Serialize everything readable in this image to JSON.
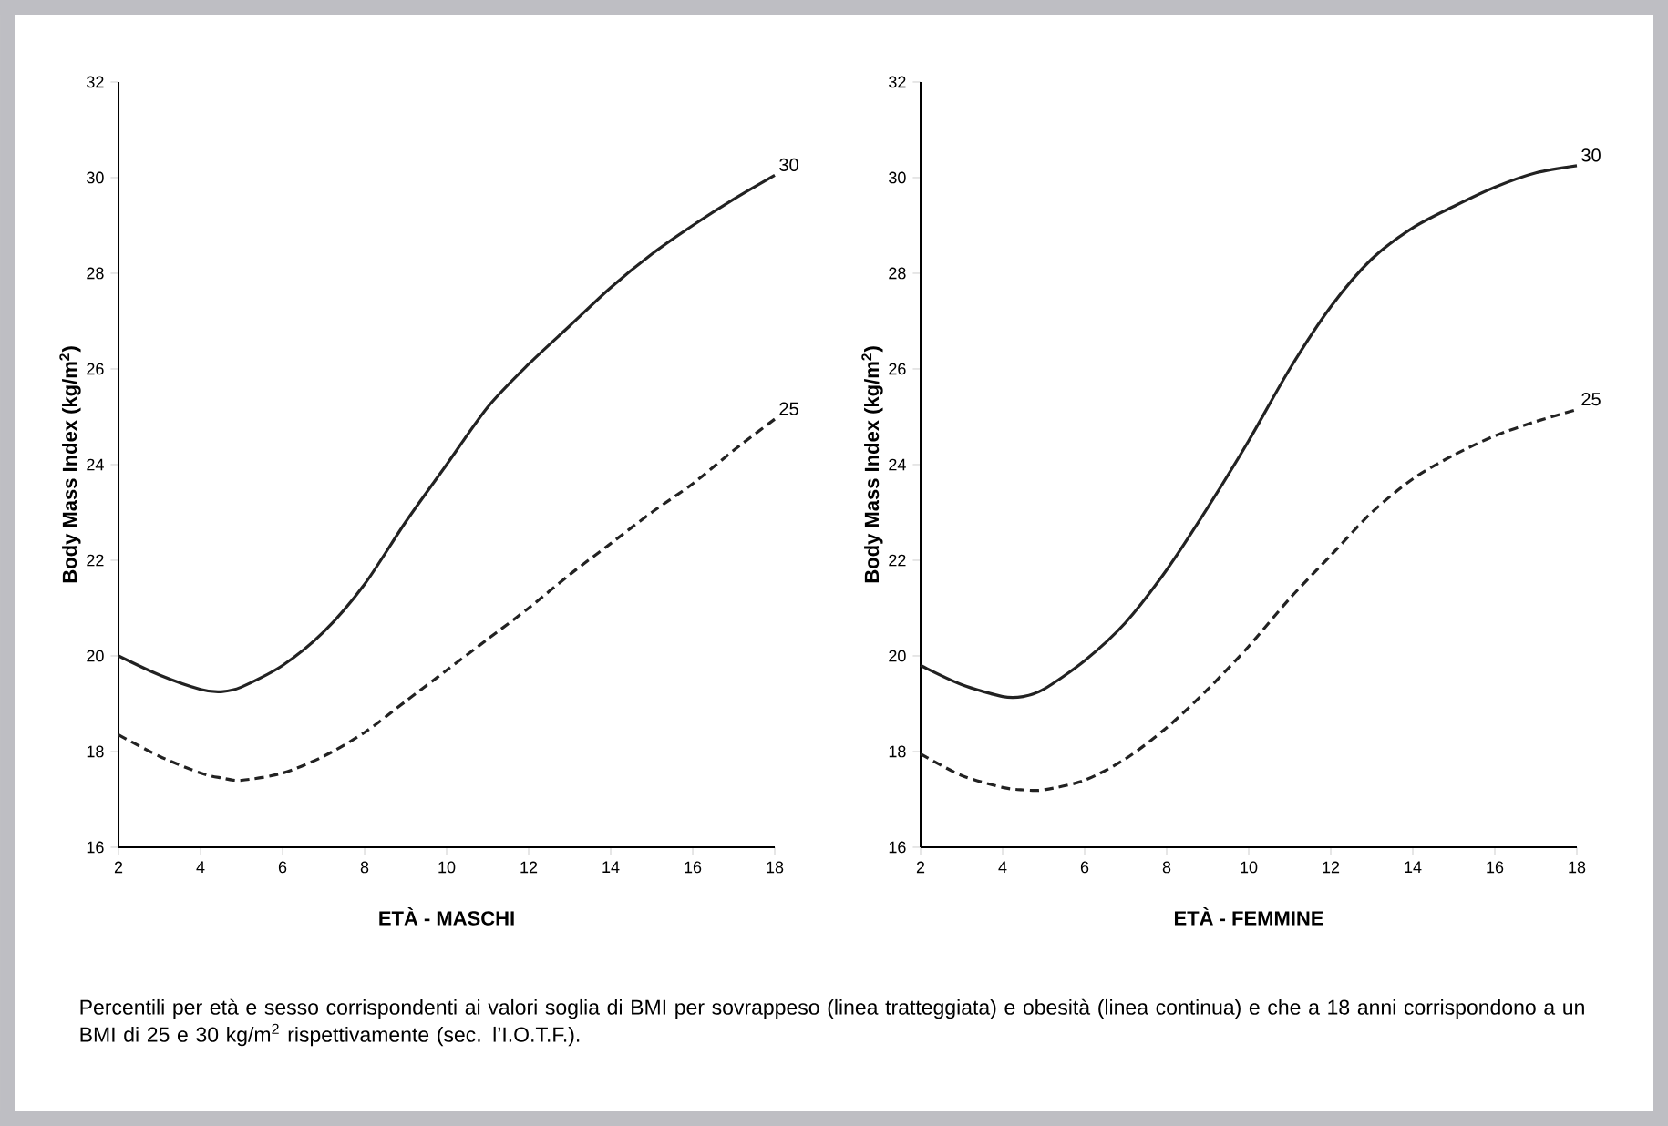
{
  "chart_data": [
    {
      "type": "line",
      "xlabel": "ETÀ - MASCHI",
      "ylabel": "Body Mass Index (kg/m$^{2}$)",
      "xlim": [
        2,
        18
      ],
      "ylim": [
        16,
        32
      ],
      "xticks": [
        2,
        4,
        6,
        8,
        10,
        12,
        14,
        16,
        18
      ],
      "yticks": [
        16,
        18,
        20,
        22,
        24,
        26,
        28,
        30,
        32
      ],
      "grid": false,
      "legend": false,
      "marker": "none",
      "x": [
        2,
        3,
        4,
        4.5,
        5,
        6,
        7,
        8,
        9,
        10,
        11,
        12,
        13,
        14,
        15,
        16,
        17,
        18
      ],
      "series": [
        {
          "name": "30",
          "color": "#222222",
          "line_style": "solid",
          "values": [
            20.0,
            19.6,
            19.3,
            19.25,
            19.35,
            19.8,
            20.5,
            21.5,
            22.8,
            24.0,
            25.2,
            26.1,
            26.9,
            27.7,
            28.4,
            29.0,
            29.55,
            30.05
          ]
        },
        {
          "name": "25",
          "color": "#222222",
          "line_style": "dashed",
          "values": [
            18.35,
            17.9,
            17.55,
            17.45,
            17.4,
            17.55,
            17.9,
            18.4,
            19.05,
            19.7,
            20.35,
            21.0,
            21.7,
            22.35,
            23.0,
            23.6,
            24.3,
            24.95
          ]
        }
      ],
      "annotations": [
        "Percentili per età e sesso corrispondenti ai valori soglia di BMI per sovrappeso (linea tratteggiata) e obesità (linea continua) e che a 18 anni corrispondono a un BMI di 25 e 30 kg/m$^{2}$ rispettivamente (sec. l’I.O.T.F.)."
      ]
    },
    {
      "type": "line",
      "xlabel": "ETÀ - FEMMINE",
      "ylabel": "Body Mass Index (kg/m$^{2}$)",
      "xlim": [
        2,
        18
      ],
      "ylim": [
        16,
        32
      ],
      "xticks": [
        2,
        4,
        6,
        8,
        10,
        12,
        14,
        16,
        18
      ],
      "yticks": [
        16,
        18,
        20,
        22,
        24,
        26,
        28,
        30,
        32
      ],
      "grid": false,
      "legend": false,
      "marker": "none",
      "x": [
        2,
        3,
        4,
        4.5,
        5,
        6,
        7,
        8,
        9,
        10,
        11,
        12,
        13,
        14,
        15,
        16,
        17,
        18
      ],
      "series": [
        {
          "name": "30",
          "color": "#222222",
          "line_style": "solid",
          "values": [
            19.8,
            19.4,
            19.15,
            19.15,
            19.3,
            19.9,
            20.7,
            21.8,
            23.1,
            24.5,
            26.0,
            27.3,
            28.3,
            28.95,
            29.4,
            29.8,
            30.1,
            30.25
          ]
        },
        {
          "name": "25",
          "color": "#222222",
          "line_style": "dashed",
          "values": [
            17.95,
            17.5,
            17.25,
            17.2,
            17.2,
            17.4,
            17.85,
            18.5,
            19.3,
            20.2,
            21.2,
            22.1,
            23.0,
            23.7,
            24.2,
            24.6,
            24.9,
            25.15
          ]
        }
      ]
    }
  ]
}
